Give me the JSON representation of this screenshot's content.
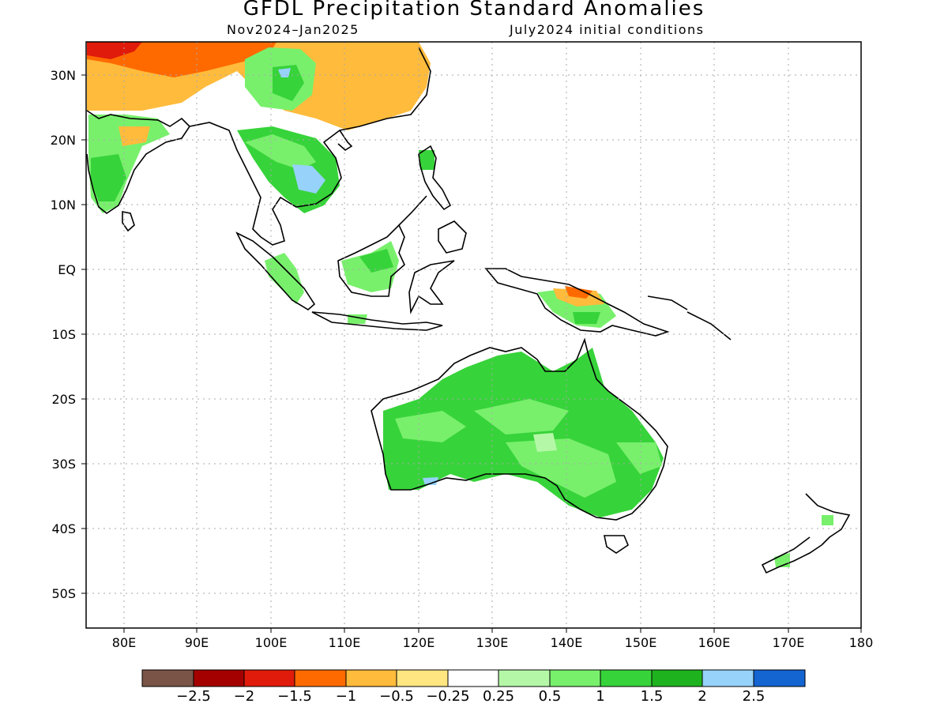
{
  "title": "GFDL Precipitation Standard Anomalies",
  "subtitle_left": "Nov2024–Jan2025",
  "subtitle_right": "July2024 initial conditions",
  "lat_labels": [
    "30N",
    "20N",
    "10N",
    "EQ",
    "10S",
    "20S",
    "30S",
    "40S",
    "50S"
  ],
  "lon_labels": [
    "80E",
    "90E",
    "100E",
    "110E",
    "120E",
    "130E",
    "140E",
    "150E",
    "160E",
    "170E",
    "180"
  ],
  "colorbar": {
    "colors": [
      "#7a5547",
      "#a50000",
      "#e01b0b",
      "#ff6a00",
      "#ffbb3c",
      "#ffe680",
      "#ffffff",
      "#b4f8a7",
      "#78f06c",
      "#37d33a",
      "#1eb31e",
      "#96d2fa",
      "#1464d2"
    ],
    "labels": [
      "−2.5",
      "−2",
      "−1.5",
      "−1",
      "−0.5",
      "−0.25",
      "0.25",
      "0.5",
      "1",
      "1.5",
      "2",
      "2.5"
    ]
  }
}
